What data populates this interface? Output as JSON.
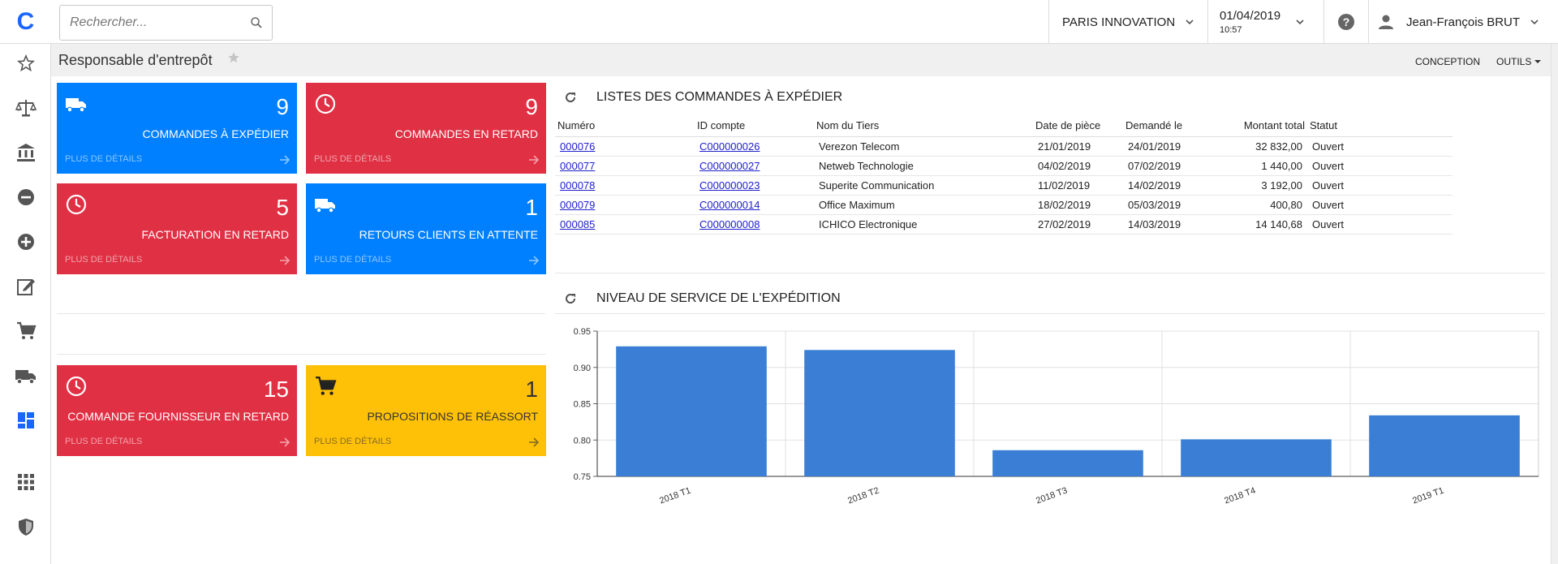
{
  "app": {
    "logo": "C"
  },
  "search": {
    "placeholder": "Rechercher..."
  },
  "topbar": {
    "company": "PARIS INNOVATION",
    "date": "01/04/2019",
    "time": "10:57",
    "user": "Jean-François BRUT"
  },
  "page": {
    "title": "Responsable d'entrepôt",
    "design_label": "CONCEPTION",
    "tools_label": "OUTILS"
  },
  "sidebar": {
    "items": [
      {
        "icon": "star-icon"
      },
      {
        "icon": "scales-icon"
      },
      {
        "icon": "bank-icon"
      },
      {
        "icon": "minus-circle-icon"
      },
      {
        "icon": "plus-circle-icon"
      },
      {
        "icon": "edit-icon"
      },
      {
        "icon": "cart-icon"
      },
      {
        "icon": "truck-icon"
      },
      {
        "icon": "dashboard-icon"
      },
      {
        "icon": "apps-grid-icon"
      },
      {
        "icon": "shield-icon"
      }
    ],
    "active_color": "#1a66ff",
    "icon_color": "#555555"
  },
  "tiles": [
    {
      "count": "9",
      "label": "COMMANDES À EXPÉDIER",
      "more": "PLUS DE DÉTAILS",
      "color": "blue",
      "icon": "truck-icon"
    },
    {
      "count": "9",
      "label": "COMMANDES EN RETARD",
      "more": "PLUS DE DÉTAILS",
      "color": "red",
      "icon": "clock-icon"
    },
    {
      "count": "5",
      "label": "FACTURATION EN RETARD",
      "more": "PLUS DE DÉTAILS",
      "color": "red",
      "icon": "clock-icon"
    },
    {
      "count": "1",
      "label": "RETOURS CLIENTS EN ATTENTE",
      "more": "PLUS DE DÉTAILS",
      "color": "blue",
      "icon": "truck-icon"
    },
    {
      "count": "15",
      "label": "COMMANDE FOURNISSEUR EN RETARD",
      "more": "PLUS DE DÉTAILS",
      "color": "red",
      "icon": "clock-icon"
    },
    {
      "count": "1",
      "label": "PROPOSITIONS DE RÉASSORT",
      "more": "PLUS DE DÉTAILS",
      "color": "yellow",
      "icon": "cart-icon"
    }
  ],
  "colors": {
    "blue": "#0080ff",
    "red": "#e03044",
    "yellow": "#ffc107",
    "bar": "#3a7fd5"
  },
  "orders_widget": {
    "title": "LISTES DES COMMANDES À EXPÉDIER",
    "columns": [
      "Numéro",
      "ID compte",
      "Nom du Tiers",
      "Date de pièce",
      "Demandé le",
      "Montant total",
      "Statut"
    ],
    "rows": [
      [
        "000076",
        "C000000026",
        "Verezon Telecom",
        "21/01/2019",
        "24/01/2019",
        "32 832,00",
        "Ouvert"
      ],
      [
        "000077",
        "C000000027",
        "Netweb Technologie",
        "04/02/2019",
        "07/02/2019",
        "1 440,00",
        "Ouvert"
      ],
      [
        "000078",
        "C000000023",
        "Superite Communication",
        "11/02/2019",
        "14/02/2019",
        "3 192,00",
        "Ouvert"
      ],
      [
        "000079",
        "C000000014",
        "Office Maximum",
        "18/02/2019",
        "05/03/2019",
        "400,80",
        "Ouvert"
      ],
      [
        "000085",
        "C000000008",
        "ICHICO Electronique",
        "27/02/2019",
        "14/03/2019",
        "14 140,68",
        "Ouvert"
      ]
    ]
  },
  "chart_widget": {
    "title": "NIVEAU DE SERVICE DE L'EXPÉDITION"
  },
  "chart_data": {
    "type": "bar",
    "categories": [
      "2018 T1",
      "2018 T2",
      "2018 T3",
      "2018 T4",
      "2019 T1"
    ],
    "values": [
      0.929,
      0.924,
      0.786,
      0.801,
      0.834
    ],
    "title": "",
    "xlabel": "",
    "ylabel": "",
    "ylim": [
      0.75,
      0.95
    ],
    "yticks": [
      "0.95",
      "0.90",
      "0.85",
      "0.80",
      "0.75"
    ],
    "grid": true
  }
}
